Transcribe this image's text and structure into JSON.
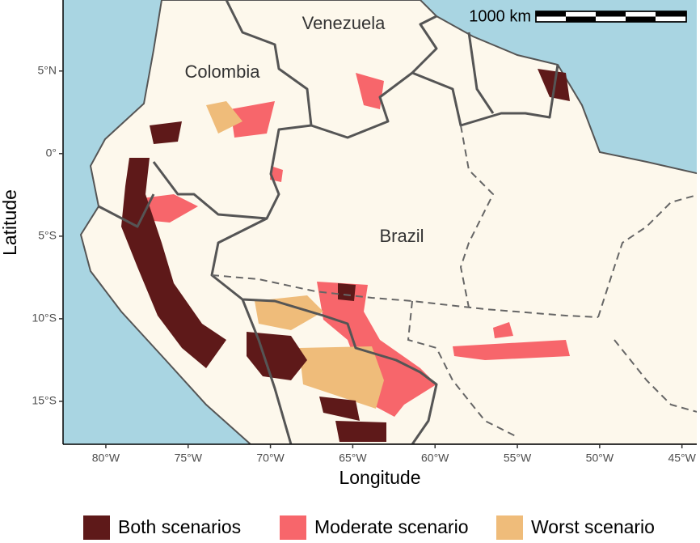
{
  "map": {
    "x_label": "Longitude",
    "y_label": "Latitude",
    "xlim": [
      -82.6,
      -44.1
    ],
    "ylim": [
      -17.6,
      9.3
    ],
    "xticks": [
      {
        "value": -80,
        "label": "80°W"
      },
      {
        "value": -75,
        "label": "75°W"
      },
      {
        "value": -70,
        "label": "70°W"
      },
      {
        "value": -65,
        "label": "65°W"
      },
      {
        "value": -60,
        "label": "60°W"
      },
      {
        "value": -55,
        "label": "55°W"
      },
      {
        "value": -50,
        "label": "50°W"
      },
      {
        "value": -45,
        "label": "45°W"
      }
    ],
    "yticks": [
      {
        "value": 5,
        "label": "5°N"
      },
      {
        "value": 0,
        "label": "0°"
      },
      {
        "value": -5,
        "label": "5°S"
      },
      {
        "value": -10,
        "label": "10°S"
      },
      {
        "value": -15,
        "label": "15°S"
      }
    ],
    "place_labels": [
      "Venezuela",
      "Colombia",
      "Brazil"
    ],
    "scale_bar": "1000 km",
    "legend": [
      {
        "name": "Both scenarios",
        "color": "#5e1919"
      },
      {
        "name": "Moderate scenario",
        "color": "#f7666b"
      },
      {
        "name": "Worst scenario",
        "color": "#efbc7a"
      }
    ]
  }
}
